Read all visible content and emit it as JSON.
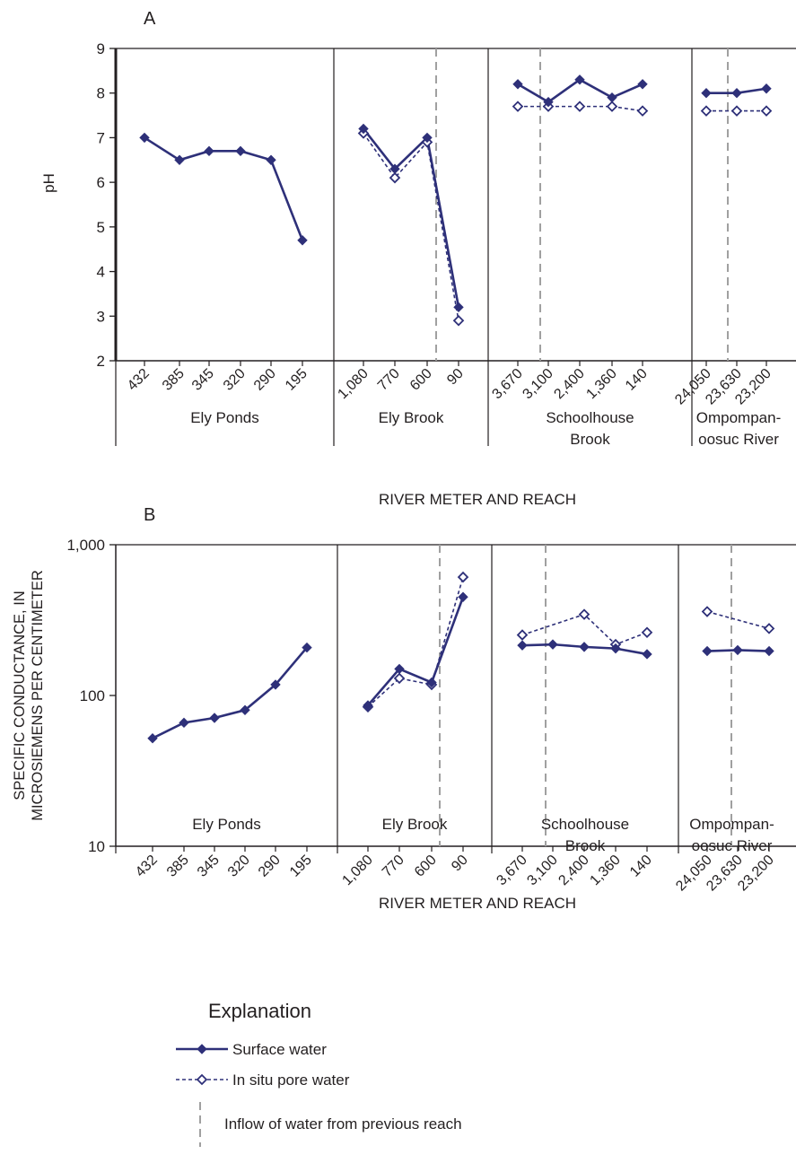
{
  "colors": {
    "series": "#2e3079",
    "inflow": "#a0a0a0",
    "axis": "#231f20",
    "divider": "#231f20"
  },
  "chart_data": [
    {
      "type": "line",
      "panel_label": "A",
      "ylabel": "pH",
      "xlabel": "RIVER METER AND REACH",
      "yscale": "linear",
      "ylim": [
        2,
        9
      ],
      "yticks": [
        "2",
        "3",
        "4",
        "5",
        "6",
        "7",
        "8",
        "9"
      ],
      "reaches": [
        {
          "name": "Ely Ponds",
          "name_line2": "",
          "x": [
            "432",
            "385",
            "345",
            "320",
            "290",
            "195"
          ],
          "surface": [
            7.0,
            6.5,
            6.7,
            6.7,
            6.5,
            4.7
          ],
          "pore": null,
          "inflow_after_index": null
        },
        {
          "name": "Ely Brook",
          "name_line2": "",
          "x": [
            "1,080",
            "770",
            "600",
            "90"
          ],
          "surface": [
            7.2,
            6.3,
            7.0,
            3.2
          ],
          "pore": [
            7.1,
            6.1,
            6.9,
            2.9
          ],
          "inflow_after_index": 2
        },
        {
          "name": "Schoolhouse",
          "name_line2": "Brook",
          "x": [
            "3,670",
            "3,100",
            "2,400",
            "1,360",
            "140"
          ],
          "surface": [
            8.2,
            7.8,
            8.3,
            7.9,
            8.2
          ],
          "pore": [
            7.7,
            7.7,
            7.7,
            7.7,
            7.6
          ],
          "inflow_after_index": 0
        },
        {
          "name": "Ompompan-",
          "name_line2": "oosuc River",
          "x": [
            "24,050",
            "23,630",
            "23,200"
          ],
          "surface": [
            8.0,
            8.0,
            8.1
          ],
          "pore": [
            7.6,
            7.6,
            7.6
          ],
          "inflow_after_index": 0
        }
      ]
    },
    {
      "type": "line",
      "panel_label": "B",
      "ylabel": "SPECIFIC CONDUCTANCE, IN",
      "ylabel_line2": "MICROSIEMENS PER CENTIMETER",
      "xlabel": "RIVER METER AND REACH",
      "yscale": "log",
      "ylim": [
        10,
        1000
      ],
      "yticks": [
        "10",
        "100",
        "1,000"
      ],
      "reaches": [
        {
          "name": "Ely Ponds",
          "name_line2": "",
          "x": [
            "432",
            "385",
            "345",
            "320",
            "290",
            "195"
          ],
          "surface": [
            52,
            66,
            71,
            80,
            118,
            208
          ],
          "pore": null,
          "inflow_after_index": null
        },
        {
          "name": "Ely Brook",
          "name_line2": "",
          "x": [
            "1,080",
            "770",
            "600",
            "90"
          ],
          "surface": [
            86,
            150,
            122,
            450
          ],
          "pore": [
            84,
            130,
            118,
            610
          ],
          "inflow_after_index": 2
        },
        {
          "name": "Schoolhouse",
          "name_line2": "Brook",
          "x": [
            "3,670",
            "3,100",
            "2,400",
            "1,360",
            "140"
          ],
          "surface": [
            215,
            218,
            210,
            205,
            188
          ],
          "pore": [
            252,
            null,
            345,
            218,
            262
          ],
          "inflow_after_index": 0
        },
        {
          "name": "Ompompan-",
          "name_line2": "oosuc River",
          "x": [
            "24,050",
            "23,630",
            "23,200"
          ],
          "surface": [
            197,
            200,
            197
          ],
          "pore": [
            360,
            null,
            278
          ],
          "inflow_after_index": 0
        }
      ]
    }
  ],
  "legend": {
    "title": "Explanation",
    "surface_label": "Surface water",
    "pore_label": "In situ pore water",
    "inflow_label": "Inflow of water from previous reach"
  }
}
